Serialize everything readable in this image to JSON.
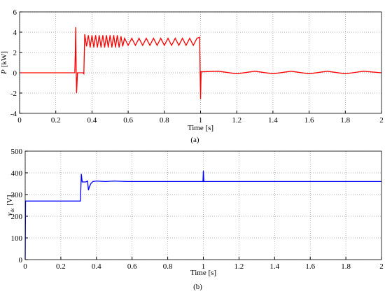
{
  "chart_data": [
    {
      "type": "line",
      "xlabel": "Time [s]",
      "ylabel": {
        "symbol": "P",
        "unit": "[kW]"
      },
      "caption": "(a)",
      "color": "#ff0000",
      "grid": true,
      "xlim": [
        0,
        2
      ],
      "ylim": [
        -4,
        6
      ],
      "xticks": [
        0,
        0.2,
        0.4,
        0.6,
        0.8,
        1,
        1.2,
        1.4,
        1.6,
        1.8,
        2
      ],
      "yticks": [
        -4,
        -2,
        0,
        2,
        4,
        6
      ],
      "x": [
        0,
        0.3,
        0.305,
        0.308,
        0.31,
        0.313,
        0.315,
        0.32,
        0.35,
        0.355,
        0.36,
        0.37,
        0.38,
        0.39,
        0.4,
        0.41,
        0.42,
        0.43,
        0.44,
        0.45,
        0.46,
        0.47,
        0.48,
        0.49,
        0.5,
        0.51,
        0.52,
        0.53,
        0.54,
        0.55,
        0.56,
        0.57,
        0.58,
        0.6,
        0.62,
        0.64,
        0.66,
        0.68,
        0.7,
        0.72,
        0.74,
        0.76,
        0.78,
        0.8,
        0.82,
        0.84,
        0.86,
        0.88,
        0.9,
        0.92,
        0.94,
        0.96,
        0.98,
        0.995,
        1,
        1.003,
        1.1,
        1.2,
        1.3,
        1.4,
        1.5,
        1.6,
        1.7,
        1.8,
        1.9,
        2
      ],
      "values": [
        0,
        0,
        0,
        2,
        4.5,
        0,
        -2,
        0,
        0,
        -0.1,
        3.8,
        2.6,
        3.7,
        2.5,
        3.7,
        2.5,
        3.7,
        2.5,
        3.7,
        2.5,
        3.7,
        2.5,
        3.7,
        2.5,
        3.7,
        2.5,
        3.7,
        2.5,
        3.7,
        2.5,
        3.6,
        2.6,
        3.4,
        2.7,
        3.4,
        2.7,
        3.4,
        2.7,
        3.4,
        2.7,
        3.4,
        2.7,
        3.4,
        2.7,
        3.4,
        2.7,
        3.4,
        2.7,
        3.4,
        2.7,
        3.4,
        2.7,
        3.4,
        3.5,
        -2.6,
        0.1,
        0.15,
        -0.1,
        0.15,
        -0.1,
        0.15,
        -0.1,
        0.15,
        -0.1,
        0.15,
        0
      ]
    },
    {
      "type": "line",
      "xlabel": "Time [s]",
      "ylabel": {
        "symbol": "v",
        "subscript": "dc",
        "unit": "[V]"
      },
      "caption": "(b)",
      "color": "#0000ff",
      "grid": true,
      "xlim": [
        0,
        2
      ],
      "ylim": [
        0,
        500
      ],
      "xticks": [
        0,
        0.2,
        0.4,
        0.6,
        0.8,
        1,
        1.2,
        1.4,
        1.6,
        1.8,
        2
      ],
      "yticks": [
        0,
        100,
        200,
        300,
        400,
        500
      ],
      "x": [
        0,
        0.002,
        0.31,
        0.315,
        0.32,
        0.34,
        0.35,
        0.355,
        0.36,
        0.37,
        0.38,
        0.4,
        0.45,
        0.5,
        0.57,
        0.8,
        0.998,
        1,
        1.003,
        2
      ],
      "values": [
        0,
        270,
        270,
        395,
        358,
        358,
        362,
        320,
        335,
        352,
        360,
        362,
        360,
        362,
        360,
        360,
        360,
        410,
        360,
        360
      ]
    }
  ]
}
